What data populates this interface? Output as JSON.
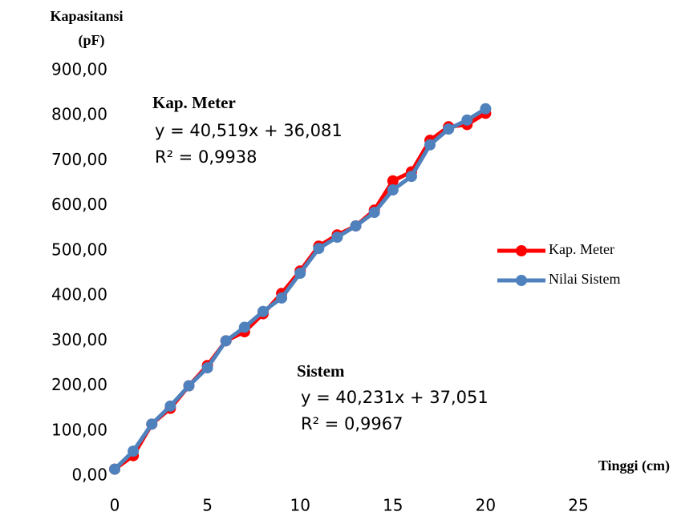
{
  "chart_data": {
    "type": "line",
    "ylabel_lines": [
      "Kapasitansi",
      "(pF)"
    ],
    "xlabel": "Tinggi (cm)",
    "x": [
      0,
      1,
      2,
      3,
      4,
      5,
      6,
      7,
      8,
      9,
      10,
      11,
      12,
      13,
      14,
      15,
      16,
      17,
      18,
      19,
      20
    ],
    "series": [
      {
        "name": "Kap. Meter",
        "color": "#ff0000",
        "values": [
          15,
          45,
          115,
          150,
          200,
          245,
          300,
          320,
          360,
          405,
          455,
          510,
          535,
          555,
          590,
          655,
          675,
          745,
          775,
          780,
          805
        ]
      },
      {
        "name": "Nilai Sistem",
        "color": "#4f81bd",
        "values": [
          15,
          55,
          115,
          155,
          200,
          240,
          300,
          330,
          365,
          395,
          450,
          505,
          530,
          555,
          585,
          635,
          665,
          735,
          770,
          790,
          815
        ]
      }
    ],
    "xlim": [
      0,
      25
    ],
    "xticks": [
      0,
      5,
      10,
      15,
      20,
      25
    ],
    "ylim": [
      0,
      900
    ],
    "yticks": [
      {
        "value": 0,
        "label": "0,00"
      },
      {
        "value": 100,
        "label": "100,00"
      },
      {
        "value": 200,
        "label": "200,00"
      },
      {
        "value": 300,
        "label": "300,00"
      },
      {
        "value": 400,
        "label": "400,00"
      },
      {
        "value": 500,
        "label": "500,00"
      },
      {
        "value": 600,
        "label": "600,00"
      },
      {
        "value": 700,
        "label": "700,00"
      },
      {
        "value": 800,
        "label": "800,00"
      },
      {
        "value": 900,
        "label": "900,00"
      }
    ],
    "annotations": [
      "Kap. Meter",
      "y = 40,519x + 36,081",
      "R² = 0,9938",
      "Sistem",
      "y = 40,231x + 37,051",
      "R² = 0,9967"
    ],
    "legend": "right"
  }
}
